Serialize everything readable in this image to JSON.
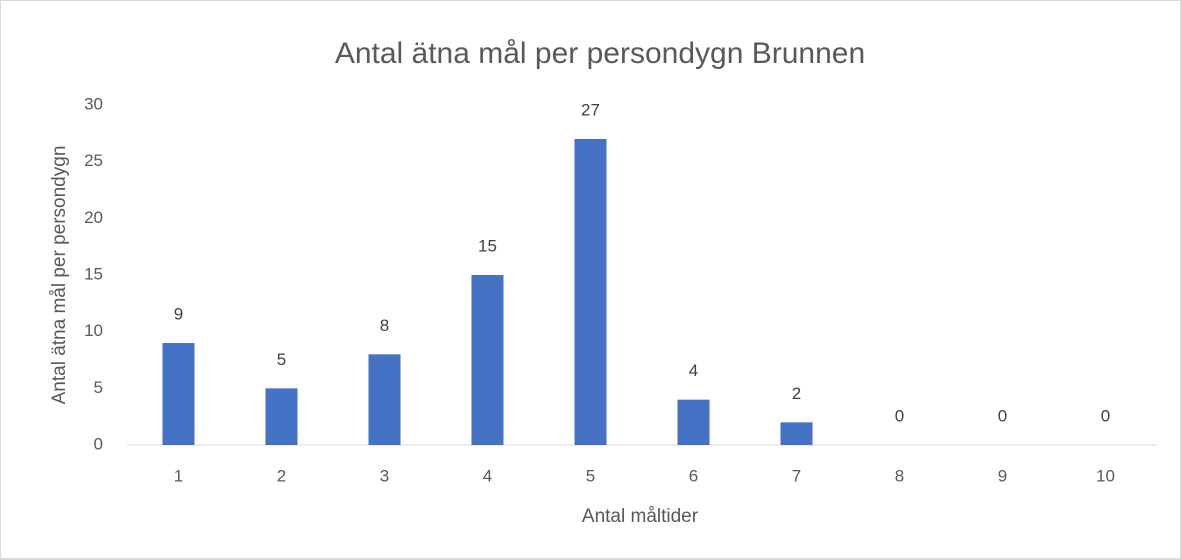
{
  "chart_data": {
    "type": "bar",
    "title": "Antal ätna mål per persondygn Brunnen",
    "x_label": "Antal måltider",
    "y_label": "Antal ätna mål per persondygn",
    "categories": [
      "1",
      "2",
      "3",
      "4",
      "5",
      "6",
      "7",
      "8",
      "9",
      "10"
    ],
    "values": [
      9,
      5,
      8,
      15,
      27,
      4,
      2,
      0,
      0,
      0
    ],
    "color": "#4472c4",
    "ylim": [
      0,
      30
    ],
    "yticks": [
      0,
      5,
      10,
      15,
      20,
      25,
      30
    ],
    "grid": false,
    "data_labels": true
  }
}
